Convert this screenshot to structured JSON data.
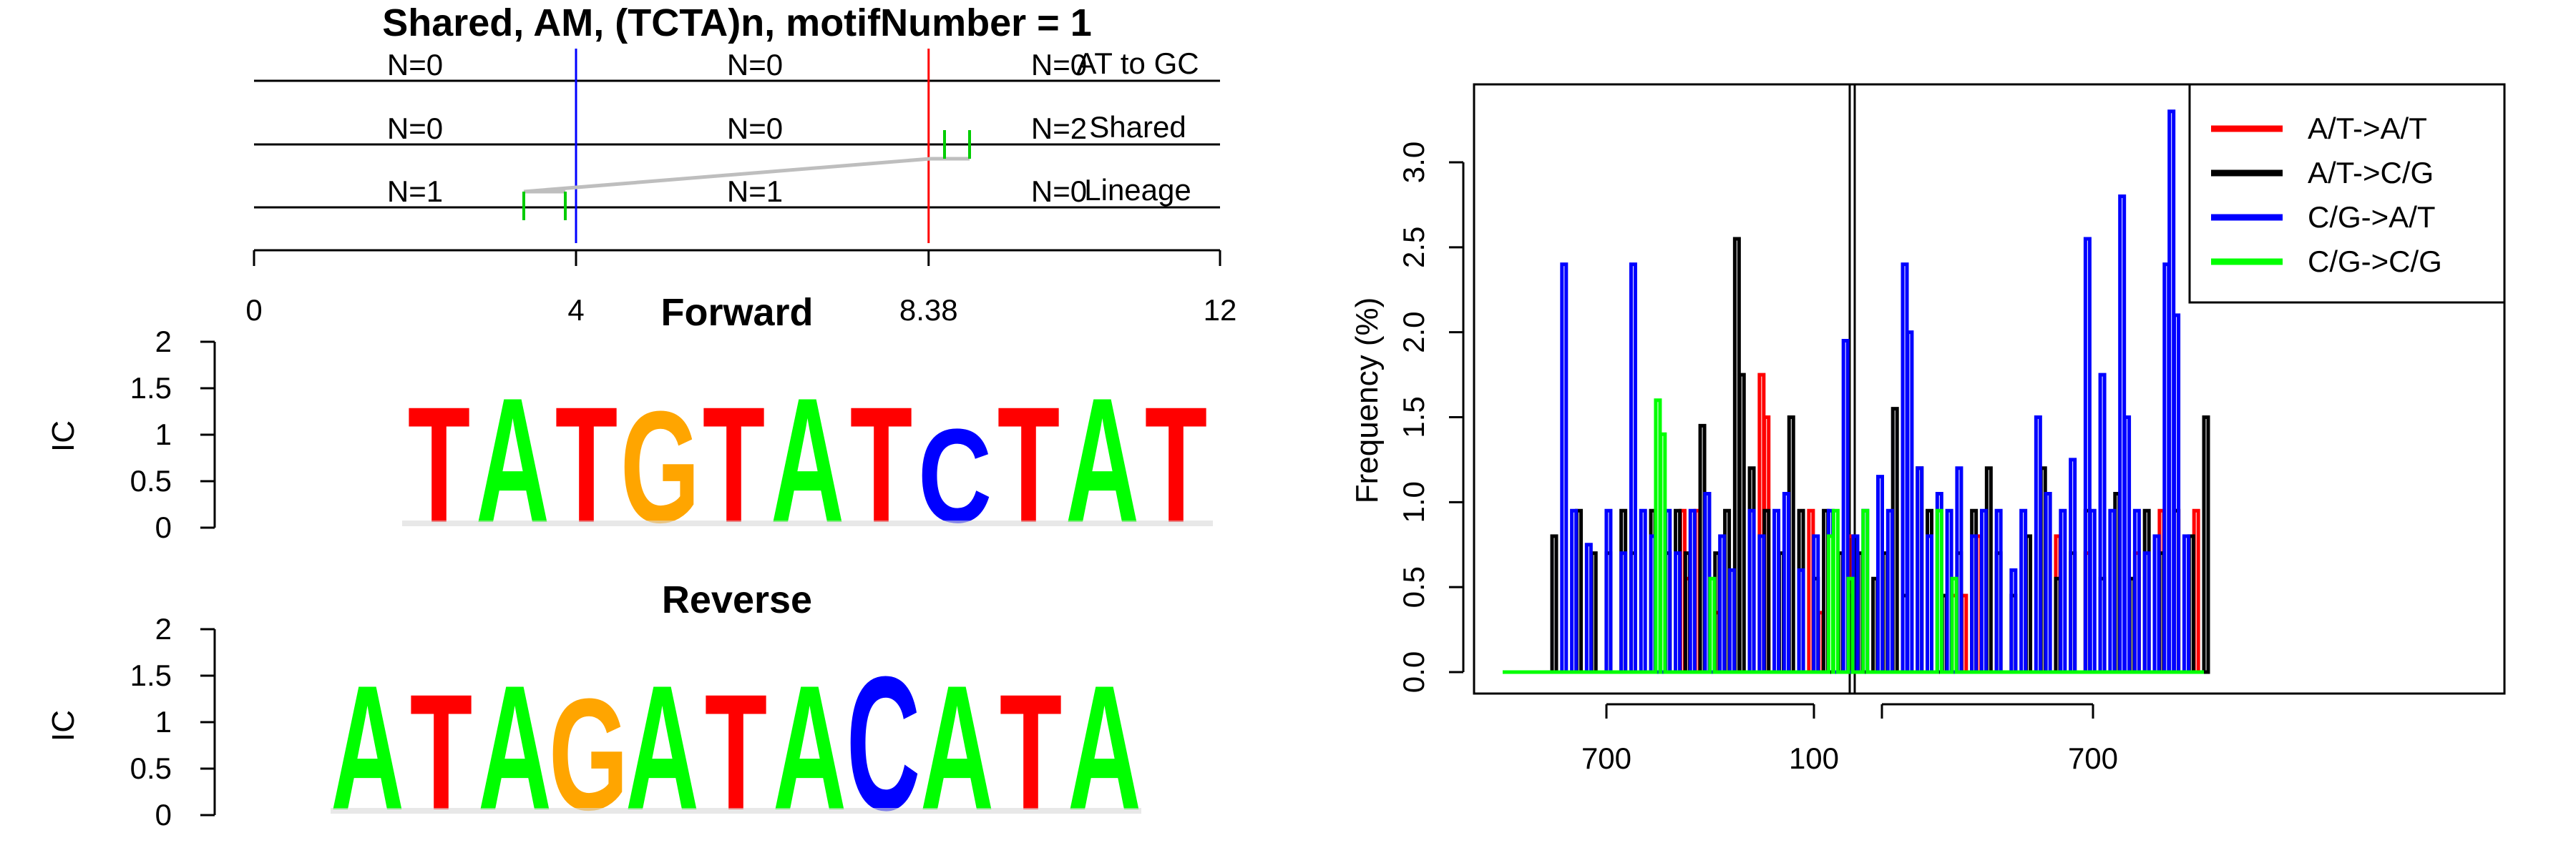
{
  "chart_data": [
    {
      "type": "tree",
      "title": "Shared, AM, (TCTA)n, motifNumber = 1",
      "rows": [
        {
          "label": "AT to GC",
          "counts": [
            "N=0",
            "N=0",
            "N=0"
          ]
        },
        {
          "label": "Shared",
          "counts": [
            "N=0",
            "N=0",
            "N=2"
          ]
        },
        {
          "label": "Lineage",
          "counts": [
            "N=1",
            "N=1",
            "N=0"
          ]
        }
      ],
      "axis": {
        "min": 0,
        "max": 12,
        "ticks": [
          0,
          4,
          8.38,
          12
        ]
      },
      "markers": [
        {
          "x": 4,
          "color": "#0000ff"
        },
        {
          "x": 8.38,
          "color": "#ff0000"
        }
      ]
    },
    {
      "type": "sequence-logo",
      "title": "Forward",
      "ylabel": "IC",
      "ylim": [
        0,
        2
      ],
      "yticks": [
        "0",
        "0.5",
        "1",
        "1.5",
        "2"
      ],
      "sequence": [
        "T",
        "A",
        "T",
        "G",
        "T",
        "A",
        "T",
        "C",
        "T",
        "A",
        "T"
      ],
      "heights": [
        1.3,
        1.4,
        1.3,
        1.25,
        1.3,
        1.4,
        1.3,
        1.05,
        1.3,
        1.4,
        1.3
      ]
    },
    {
      "type": "sequence-logo",
      "title": "Reverse",
      "ylabel": "IC",
      "ylim": [
        0,
        2
      ],
      "yticks": [
        "0",
        "0.5",
        "1",
        "1.5",
        "2"
      ],
      "sequence": [
        "A",
        "T",
        "A",
        "G",
        "A",
        "T",
        "A",
        "C",
        "A",
        "T",
        "A"
      ],
      "heights": [
        1.4,
        1.3,
        1.4,
        1.25,
        1.4,
        1.3,
        1.4,
        1.5,
        1.4,
        1.3,
        1.4
      ]
    },
    {
      "type": "line",
      "ylabel": "Frequency (%)",
      "ylim": [
        0,
        3.3
      ],
      "yticks": [
        "0.0",
        "0.5",
        "1.0",
        "1.5",
        "2.0",
        "2.5",
        "3.0"
      ],
      "xticks": [
        "700",
        "100",
        "700"
      ],
      "legend_position": "top-right",
      "series": [
        {
          "name": "A/T->A/T",
          "color": "#ff0000",
          "values": [
            [
              36,
              0.95
            ],
            [
              37,
              0.55
            ],
            [
              39,
              0.95
            ],
            [
              43,
              0.35
            ],
            [
              52,
              1.75
            ],
            [
              53,
              1.5
            ],
            [
              62,
              0.95
            ],
            [
              64,
              0.35
            ],
            [
              70,
              0.8
            ],
            [
              91,
              0.45
            ],
            [
              93,
              0.45
            ],
            [
              96,
              0.8
            ],
            [
              112,
              0.8
            ],
            [
              118,
              0.7
            ],
            [
              128,
              0.7
            ],
            [
              133,
              0.95
            ],
            [
              136,
              0.95
            ],
            [
              140,
              0.95
            ]
          ]
        },
        {
          "name": "A/T->C/G",
          "color": "#000000",
          "values": [
            [
              10,
              0.8
            ],
            [
              15,
              0.95
            ],
            [
              18,
              0.7
            ],
            [
              21,
              0.7
            ],
            [
              24,
              0.95
            ],
            [
              26,
              0.7
            ],
            [
              30,
              0.95
            ],
            [
              33,
              0.7
            ],
            [
              35,
              0.95
            ],
            [
              37,
              0.7
            ],
            [
              40,
              1.45
            ],
            [
              43,
              0.7
            ],
            [
              45,
              0.95
            ],
            [
              47,
              2.55
            ],
            [
              48,
              1.75
            ],
            [
              50,
              1.2
            ],
            [
              53,
              0.95
            ],
            [
              56,
              0.7
            ],
            [
              58,
              1.5
            ],
            [
              60,
              0.95
            ],
            [
              63,
              0.55
            ],
            [
              65,
              0.95
            ],
            [
              68,
              0.7
            ],
            [
              70,
              0.45
            ],
            [
              72,
              0.7
            ],
            [
              75,
              0.55
            ],
            [
              77,
              0.7
            ],
            [
              79,
              1.55
            ],
            [
              81,
              0.45
            ],
            [
              84,
              1.2
            ],
            [
              86,
              0.95
            ],
            [
              89,
              0.45
            ],
            [
              92,
              0.7
            ],
            [
              95,
              0.95
            ],
            [
              98,
              1.2
            ],
            [
              100,
              0.7
            ],
            [
              103,
              0.45
            ],
            [
              106,
              0.8
            ],
            [
              109,
              1.2
            ],
            [
              112,
              0.55
            ],
            [
              115,
              0.7
            ],
            [
              118,
              0.95
            ],
            [
              121,
              0.55
            ],
            [
              124,
              1.05
            ],
            [
              127,
              0.55
            ],
            [
              130,
              0.95
            ],
            [
              133,
              0.7
            ],
            [
              136,
              0.95
            ],
            [
              139,
              0.8
            ],
            [
              142,
              1.5
            ]
          ]
        },
        {
          "name": "C/G->A/T",
          "color": "#0000ff",
          "values": [
            [
              12,
              2.4
            ],
            [
              14,
              0.95
            ],
            [
              17,
              0.75
            ],
            [
              21,
              0.95
            ],
            [
              24,
              0.7
            ],
            [
              26,
              2.4
            ],
            [
              28,
              0.95
            ],
            [
              30,
              0.8
            ],
            [
              33,
              0.95
            ],
            [
              35,
              0.7
            ],
            [
              38,
              0.95
            ],
            [
              41,
              1.05
            ],
            [
              44,
              0.8
            ],
            [
              46,
              0.6
            ],
            [
              50,
              0.95
            ],
            [
              52,
              0.8
            ],
            [
              55,
              0.95
            ],
            [
              57,
              1.05
            ],
            [
              60,
              0.6
            ],
            [
              63,
              0.8
            ],
            [
              66,
              0.95
            ],
            [
              69,
              1.95
            ],
            [
              71,
              0.8
            ],
            [
              73,
              0.95
            ],
            [
              76,
              1.15
            ],
            [
              78,
              0.95
            ],
            [
              81,
              2.4
            ],
            [
              82,
              2.0
            ],
            [
              84,
              1.2
            ],
            [
              86,
              0.8
            ],
            [
              88,
              1.05
            ],
            [
              90,
              0.95
            ],
            [
              92,
              1.2
            ],
            [
              95,
              0.8
            ],
            [
              97,
              0.95
            ],
            [
              100,
              0.95
            ],
            [
              103,
              0.6
            ],
            [
              105,
              0.95
            ],
            [
              108,
              1.5
            ],
            [
              110,
              1.05
            ],
            [
              113,
              0.95
            ],
            [
              115,
              1.25
            ],
            [
              118,
              2.55
            ],
            [
              119,
              0.95
            ],
            [
              121,
              1.75
            ],
            [
              123,
              0.95
            ],
            [
              125,
              2.8
            ],
            [
              126,
              1.5
            ],
            [
              128,
              0.95
            ],
            [
              130,
              0.7
            ],
            [
              132,
              0.8
            ],
            [
              134,
              2.4
            ],
            [
              135,
              3.3
            ],
            [
              136,
              2.1
            ],
            [
              138,
              0.8
            ]
          ]
        },
        {
          "name": "C/G->C/G",
          "color": "#00ff00",
          "values": [
            [
              31,
              1.6
            ],
            [
              32,
              1.4
            ],
            [
              42,
              0.55
            ],
            [
              66,
              0.8
            ],
            [
              67,
              0.95
            ],
            [
              70,
              0.55
            ],
            [
              73,
              0.95
            ],
            [
              88,
              0.95
            ],
            [
              91,
              0.55
            ]
          ]
        }
      ]
    }
  ]
}
